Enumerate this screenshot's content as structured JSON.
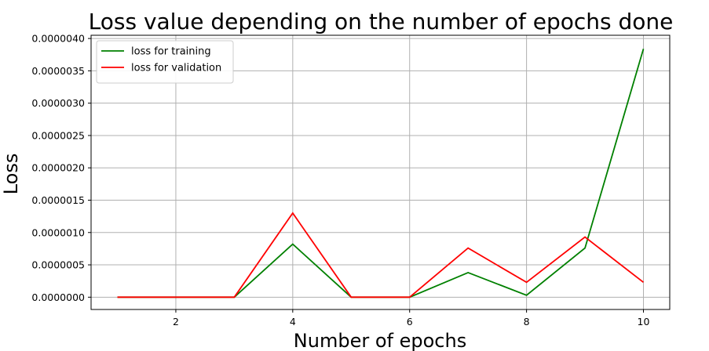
{
  "chart_data": {
    "type": "line",
    "title": "Loss value depending on the number of epochs done",
    "xlabel": "Number of epochs",
    "ylabel": "Loss",
    "x": [
      1,
      2,
      3,
      4,
      5,
      6,
      7,
      8,
      9,
      10
    ],
    "xticks": [
      2,
      4,
      6,
      8,
      10
    ],
    "xlim": [
      0.55,
      10.45
    ],
    "yticks": [
      0,
      5e-07,
      1e-06,
      1.5e-06,
      2e-06,
      2.5e-06,
      3e-06,
      3.5e-06,
      4e-06
    ],
    "ytick_labels": [
      "0.0000000",
      "0.0000005",
      "0.0000010",
      "0.0000015",
      "0.0000020",
      "0.0000025",
      "0.0000030",
      "0.0000035",
      "0.0000040"
    ],
    "ylim": [
      -1.9e-07,
      4.05e-06
    ],
    "grid": true,
    "legend_position": "top-left",
    "series": [
      {
        "name": "loss for training",
        "color": "#008000",
        "values": [
          0,
          0,
          0,
          8.2e-07,
          0,
          0,
          3.8e-07,
          3e-08,
          7.6e-07,
          3.84e-06
        ]
      },
      {
        "name": "loss for validation",
        "color": "#ff0000",
        "values": [
          0,
          0,
          0,
          1.3e-06,
          0,
          0,
          7.6e-07,
          2.3e-07,
          9.3e-07,
          2.3e-07
        ]
      }
    ]
  }
}
